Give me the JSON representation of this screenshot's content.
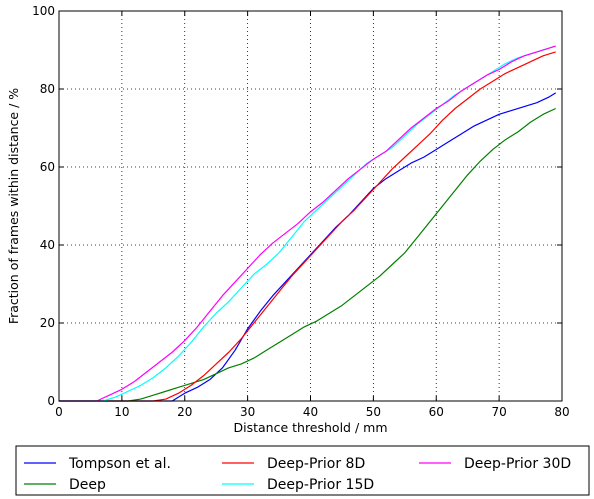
{
  "chart_data": {
    "type": "line",
    "title": "",
    "xlabel": "Distance threshold / mm",
    "ylabel": "Fraction of frames within distance / %",
    "xlim": [
      0,
      80
    ],
    "ylim": [
      0,
      100
    ],
    "xticks": [
      "0",
      "10",
      "20",
      "30",
      "40",
      "50",
      "60",
      "70",
      "80"
    ],
    "yticks": [
      "0",
      "20",
      "40",
      "60",
      "80",
      "100"
    ],
    "grid": true,
    "legend_position": "bottom",
    "series": [
      {
        "name": "Tompson et al.",
        "color": "#0000ff",
        "points": [
          [
            0,
            0
          ],
          [
            18,
            0
          ],
          [
            20,
            2
          ],
          [
            22,
            3.5
          ],
          [
            24,
            5.5
          ],
          [
            26,
            8.5
          ],
          [
            28,
            13
          ],
          [
            30,
            18.5
          ],
          [
            32,
            23
          ],
          [
            34,
            27
          ],
          [
            36,
            30.5
          ],
          [
            38,
            34
          ],
          [
            40,
            37.5
          ],
          [
            42,
            41
          ],
          [
            44,
            44.5
          ],
          [
            46,
            47.5
          ],
          [
            48,
            51
          ],
          [
            50,
            54.5
          ],
          [
            52,
            57
          ],
          [
            54,
            59
          ],
          [
            56,
            61
          ],
          [
            58,
            62.5
          ],
          [
            60,
            64.5
          ],
          [
            62,
            66.5
          ],
          [
            64,
            68.5
          ],
          [
            66,
            70.5
          ],
          [
            68,
            72
          ],
          [
            70,
            73.5
          ],
          [
            72,
            74.5
          ],
          [
            74,
            75.5
          ],
          [
            76,
            76.5
          ],
          [
            78,
            78
          ],
          [
            79,
            79
          ]
        ]
      },
      {
        "name": "Deep",
        "color": "#008000",
        "points": [
          [
            0,
            0
          ],
          [
            11,
            0
          ],
          [
            13,
            0.5
          ],
          [
            15,
            1.5
          ],
          [
            17,
            2.5
          ],
          [
            19,
            3.5
          ],
          [
            21,
            4.5
          ],
          [
            23,
            5.5
          ],
          [
            25,
            7
          ],
          [
            27,
            8.5
          ],
          [
            29,
            9.5
          ],
          [
            31,
            11
          ],
          [
            33,
            13
          ],
          [
            35,
            15
          ],
          [
            37,
            17
          ],
          [
            39,
            19
          ],
          [
            41,
            20.5
          ],
          [
            43,
            22.5
          ],
          [
            45,
            24.5
          ],
          [
            47,
            27
          ],
          [
            49,
            29.5
          ],
          [
            51,
            32
          ],
          [
            53,
            35
          ],
          [
            55,
            38
          ],
          [
            57,
            42
          ],
          [
            59,
            46
          ],
          [
            61,
            50
          ],
          [
            63,
            54
          ],
          [
            65,
            58
          ],
          [
            67,
            61.5
          ],
          [
            69,
            64.5
          ],
          [
            71,
            67
          ],
          [
            73,
            69
          ],
          [
            75,
            71.5
          ],
          [
            77,
            73.5
          ],
          [
            79,
            75
          ]
        ]
      },
      {
        "name": "Deep-Prior 8D",
        "color": "#ff0000",
        "points": [
          [
            0,
            0
          ],
          [
            15,
            0
          ],
          [
            17,
            0.5
          ],
          [
            19,
            2
          ],
          [
            21,
            4
          ],
          [
            23,
            6.5
          ],
          [
            25,
            9.5
          ],
          [
            27,
            12.5
          ],
          [
            29,
            16
          ],
          [
            31,
            20
          ],
          [
            33,
            24
          ],
          [
            35,
            28
          ],
          [
            37,
            32
          ],
          [
            39,
            35.5
          ],
          [
            41,
            39
          ],
          [
            43,
            42.5
          ],
          [
            45,
            46
          ],
          [
            47,
            49
          ],
          [
            49,
            52.5
          ],
          [
            51,
            56
          ],
          [
            53,
            59.5
          ],
          [
            55,
            62.5
          ],
          [
            57,
            65.5
          ],
          [
            59,
            68.5
          ],
          [
            61,
            72
          ],
          [
            63,
            75
          ],
          [
            65,
            77.5
          ],
          [
            67,
            80
          ],
          [
            69,
            82
          ],
          [
            71,
            84
          ],
          [
            73,
            85.5
          ],
          [
            75,
            87
          ],
          [
            77,
            88.5
          ],
          [
            79,
            89.5
          ]
        ]
      },
      {
        "name": "Deep-Prior 15D",
        "color": "#00ffff",
        "points": [
          [
            0,
            0
          ],
          [
            7,
            0
          ],
          [
            9,
            1
          ],
          [
            11,
            2.5
          ],
          [
            13,
            4
          ],
          [
            15,
            6
          ],
          [
            17,
            8.5
          ],
          [
            19,
            11.5
          ],
          [
            21,
            15
          ],
          [
            23,
            19
          ],
          [
            25,
            22.5
          ],
          [
            27,
            25.5
          ],
          [
            29,
            29
          ],
          [
            31,
            32.5
          ],
          [
            33,
            35
          ],
          [
            35,
            38
          ],
          [
            37,
            42
          ],
          [
            39,
            46
          ],
          [
            41,
            49
          ],
          [
            43,
            52
          ],
          [
            45,
            55
          ],
          [
            47,
            58
          ],
          [
            49,
            61
          ],
          [
            51,
            63
          ],
          [
            53,
            65
          ],
          [
            55,
            68
          ],
          [
            57,
            71
          ],
          [
            59,
            73.5
          ],
          [
            61,
            76
          ],
          [
            63,
            78.5
          ],
          [
            65,
            80.5
          ],
          [
            67,
            82.5
          ],
          [
            69,
            84.5
          ],
          [
            71,
            86.5
          ],
          [
            73,
            88
          ],
          [
            75,
            89
          ],
          [
            77,
            90
          ],
          [
            79,
            91
          ]
        ]
      },
      {
        "name": "Deep-Prior 30D",
        "color": "#ff00ff",
        "points": [
          [
            0,
            0
          ],
          [
            6,
            0
          ],
          [
            8,
            1.5
          ],
          [
            10,
            3
          ],
          [
            12,
            5
          ],
          [
            14,
            7.5
          ],
          [
            16,
            10
          ],
          [
            18,
            12.5
          ],
          [
            20,
            15.5
          ],
          [
            22,
            19
          ],
          [
            24,
            23
          ],
          [
            26,
            27
          ],
          [
            28,
            30.5
          ],
          [
            30,
            34
          ],
          [
            32,
            37.5
          ],
          [
            34,
            40.5
          ],
          [
            36,
            43
          ],
          [
            38,
            45.5
          ],
          [
            40,
            48.5
          ],
          [
            42,
            51
          ],
          [
            44,
            54
          ],
          [
            46,
            57
          ],
          [
            48,
            59.5
          ],
          [
            50,
            62
          ],
          [
            52,
            64
          ],
          [
            54,
            67
          ],
          [
            56,
            70
          ],
          [
            58,
            72.5
          ],
          [
            60,
            75
          ],
          [
            62,
            77
          ],
          [
            64,
            79.5
          ],
          [
            66,
            81.5
          ],
          [
            68,
            83.5
          ],
          [
            70,
            85
          ],
          [
            72,
            87
          ],
          [
            74,
            88.5
          ],
          [
            76,
            89.5
          ],
          [
            79,
            91
          ]
        ]
      }
    ]
  }
}
